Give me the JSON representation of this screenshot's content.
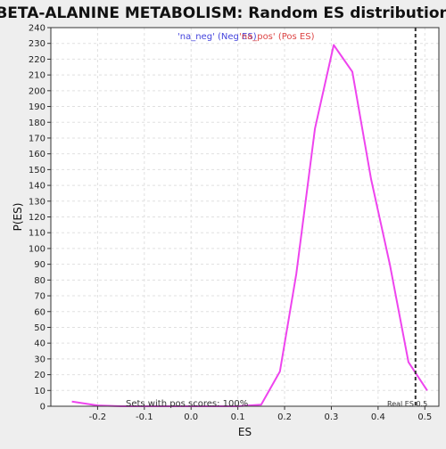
{
  "chart_data": {
    "type": "line",
    "title": "BETA-ALANINE METABOLISM: Random ES distribution",
    "xlabel": "ES",
    "ylabel": "P(ES)",
    "xlim": [
      -0.3,
      0.53
    ],
    "ylim": [
      0,
      240
    ],
    "x_ticks": [
      -0.2,
      -0.1,
      0.0,
      0.1,
      0.2,
      0.3,
      0.4,
      0.5
    ],
    "x_tick_labels": [
      "-0.2",
      "-0.1",
      "0.0",
      "0.1",
      "0.2",
      "0.3",
      "0.4",
      "0.5"
    ],
    "y_ticks": [
      0,
      10,
      20,
      30,
      40,
      50,
      60,
      70,
      80,
      90,
      100,
      110,
      120,
      130,
      140,
      150,
      160,
      170,
      180,
      190,
      200,
      210,
      220,
      230,
      240
    ],
    "grid": true,
    "series": [
      {
        "color": "#ee44ee",
        "x": [
          -0.255,
          -0.2,
          -0.15,
          -0.1,
          -0.05,
          0.0,
          0.05,
          0.1,
          0.15,
          0.19,
          0.225,
          0.265,
          0.305,
          0.345,
          0.385,
          0.425,
          0.465,
          0.505
        ],
        "y": [
          3,
          0.5,
          0,
          0,
          0,
          0,
          0,
          0,
          1,
          22,
          84,
          176,
          229,
          212,
          144,
          90,
          28,
          10
        ]
      }
    ],
    "annotations": {
      "neg_label": "'na_neg' (Neg ES)",
      "neg_color": "#4444dd",
      "pos_label": "'na_pos' (Pos ES)",
      "pos_color": "#dd4444",
      "sets_label": "Sets with pos scores: 100%",
      "real_es_label": "Real ES 0.5",
      "real_es": 0.48
    },
    "colors": {
      "background": "#eeeeee",
      "plot_bg": "#ffffff",
      "grid": "#e0e0e0",
      "axis": "#333333"
    }
  }
}
